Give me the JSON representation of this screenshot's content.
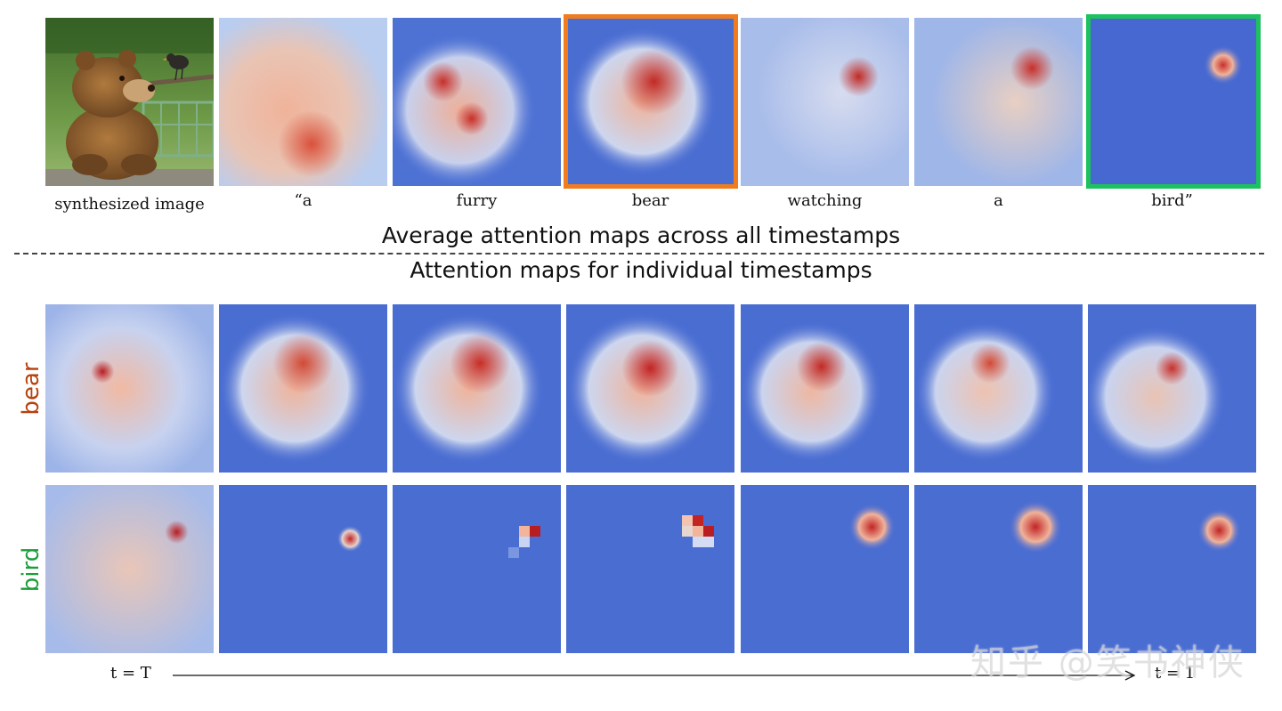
{
  "top_row": {
    "captions": [
      "synthesized image",
      "“a",
      "furry",
      "bear",
      "watching",
      "a",
      "bird”"
    ]
  },
  "headings": {
    "average": "Average attention maps across all timestamps",
    "individual": "Attention maps for individual  timestamps"
  },
  "rows": {
    "bear_label": "bear",
    "bird_label": "bird",
    "bear_color": "#b8400d",
    "bird_color": "#1a9e3a"
  },
  "timeline": {
    "start_label": "t = T",
    "end_label": "t = 1"
  },
  "highlight_colors": {
    "bear": "#f07c1e",
    "bird": "#1dc25f"
  },
  "watermark": "知乎 @笑书神侠"
}
